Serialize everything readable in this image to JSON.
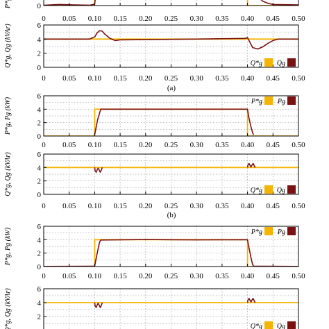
{
  "colors": {
    "reference": "#f5b400",
    "measured": "#7a1212"
  },
  "xticks": [
    "0",
    "0.05",
    "0.10",
    "0.15",
    "0.20",
    "0.25",
    "0.30",
    "0.35",
    "0.40",
    "0.45",
    "0.50"
  ],
  "chart_data": [
    {
      "type": "line",
      "id": "a-P",
      "ylabel": "P*g, Pg",
      "ylim": [
        0,
        6
      ],
      "yticks": [
        "0"
      ],
      "xlim": [
        0,
        0.5
      ],
      "grid": true,
      "legend": null,
      "series": [
        {
          "role": "reference",
          "x": [
            0,
            0.1,
            0.1,
            0.4,
            0.4,
            0.5
          ],
          "y": [
            0,
            0,
            6,
            6,
            0,
            0
          ]
        },
        {
          "role": "measured",
          "x": [
            0,
            0.03,
            0.06,
            0.09,
            0.1,
            0.103,
            0.106,
            0.4,
            0.403,
            0.41,
            0.42,
            0.43,
            0.44,
            0.45,
            0.5
          ],
          "y": [
            0.05,
            0.15,
            0.1,
            0.05,
            0.2,
            2,
            5,
            5,
            3.5,
            2.2,
            1.2,
            0.6,
            0.3,
            0.15,
            0.1
          ]
        }
      ]
    },
    {
      "type": "line",
      "id": "a-Q",
      "ylabel": "Q*g, Qg (kVAr)",
      "ylim": [
        0,
        6
      ],
      "yticks": [
        "0",
        "2",
        "4",
        "6"
      ],
      "xlim": [
        0,
        0.5
      ],
      "grid": true,
      "legend": {
        "placement": "bottom-right",
        "entries": [
          "Q*g",
          "Qg"
        ]
      },
      "series": [
        {
          "role": "reference",
          "x": [
            0,
            0.5
          ],
          "y": [
            4,
            4
          ]
        },
        {
          "role": "measured",
          "x": [
            0,
            0.09,
            0.1,
            0.105,
            0.11,
            0.115,
            0.12,
            0.13,
            0.14,
            0.15,
            0.3,
            0.395,
            0.4,
            0.405,
            0.41,
            0.42,
            0.43,
            0.44,
            0.45,
            0.46,
            0.5
          ],
          "y": [
            4,
            4,
            4.3,
            4.9,
            5.2,
            5.1,
            4.7,
            4.1,
            3.8,
            3.9,
            4,
            4.1,
            4.2,
            3.5,
            2.8,
            2.6,
            2.9,
            3.4,
            3.8,
            4,
            4
          ]
        }
      ]
    },
    {
      "type": "line",
      "id": "b-P",
      "ylabel": "P*g, Pg (kW)",
      "ylim": [
        0,
        6
      ],
      "yticks": [
        "0",
        "2",
        "4",
        "6"
      ],
      "xlim": [
        0,
        0.5
      ],
      "grid": true,
      "legend": {
        "placement": "top-right",
        "entries": [
          "P*g",
          "Pg"
        ]
      },
      "series": [
        {
          "role": "reference",
          "x": [
            0,
            0.1,
            0.1,
            0.4,
            0.4,
            0.5
          ],
          "y": [
            0,
            0,
            4,
            4,
            0,
            0
          ]
        },
        {
          "role": "measured",
          "x": [
            0.1,
            0.102,
            0.106,
            0.11,
            0.112,
            0.4,
            0.402,
            0.406,
            0.41,
            0.412
          ],
          "y": [
            0.2,
            1.0,
            2.5,
            3.5,
            4.0,
            4.0,
            3.0,
            1.6,
            0.5,
            0.2
          ]
        }
      ]
    },
    {
      "type": "line",
      "id": "b-Q",
      "ylabel": "Q*g, Qg (kVAr)",
      "ylim": [
        0,
        6
      ],
      "yticks": [
        "0",
        "2",
        "4",
        "6"
      ],
      "xlim": [
        0,
        0.5
      ],
      "grid": true,
      "legend": {
        "placement": "bottom-right",
        "entries": [
          "Q*g",
          "Qg"
        ]
      },
      "series": [
        {
          "role": "reference",
          "x": [
            0,
            0.5
          ],
          "y": [
            4,
            4
          ]
        },
        {
          "role": "measured",
          "x": [
            0.1,
            0.101,
            0.103,
            0.105,
            0.107,
            0.109,
            0.111,
            0.113,
            0.115
          ],
          "y": [
            4,
            3.5,
            3.3,
            3.7,
            3.9,
            3.6,
            3.3,
            3.6,
            4
          ]
        },
        {
          "role": "measured",
          "x": [
            0.4,
            0.401,
            0.403,
            0.405,
            0.407,
            0.409,
            0.411,
            0.413,
            0.415
          ],
          "y": [
            4,
            4.4,
            4.6,
            4.3,
            4.1,
            4.4,
            4.6,
            4.3,
            4
          ]
        }
      ]
    },
    {
      "type": "line",
      "id": "c-P",
      "ylabel": "P*g, Pg (kW)",
      "ylim": [
        0,
        6
      ],
      "yticks": [
        "0",
        "2",
        "4",
        "6"
      ],
      "xlim": [
        0,
        0.5
      ],
      "grid": true,
      "legend": {
        "placement": "top-right",
        "entries": [
          "P*g",
          "Pg"
        ]
      },
      "series": [
        {
          "role": "reference",
          "x": [
            0,
            0.1,
            0.1,
            0.4,
            0.4,
            0.5
          ],
          "y": [
            0,
            0,
            4,
            4,
            0,
            0
          ]
        },
        {
          "role": "measured",
          "x": [
            0,
            0.1,
            0.102,
            0.105,
            0.108,
            0.11,
            0.112,
            0.2,
            0.3,
            0.4,
            0.402,
            0.405,
            0.408,
            0.41,
            0.412,
            0.5
          ],
          "y": [
            0.02,
            0.05,
            0.9,
            2.0,
            3.1,
            3.7,
            3.95,
            4.02,
            3.97,
            4.0,
            3.1,
            2.0,
            0.9,
            0.3,
            0.05,
            0.02
          ]
        }
      ]
    },
    {
      "type": "line",
      "id": "c-Q",
      "ylabel": "Q*g, Qg (kVAr)",
      "ylim": [
        0,
        6
      ],
      "yticks": [
        "2",
        "4",
        "6"
      ],
      "xlim": [
        0,
        0.5
      ],
      "grid": true,
      "legend": {
        "placement": "bottom-right",
        "entries": [
          "Q*g",
          "Qg"
        ]
      },
      "series": [
        {
          "role": "reference",
          "x": [
            0,
            0.5
          ],
          "y": [
            4,
            4
          ]
        },
        {
          "role": "measured",
          "x": [
            0.1,
            0.101,
            0.103,
            0.105,
            0.107,
            0.109,
            0.111,
            0.113,
            0.115
          ],
          "y": [
            4,
            3.5,
            3.3,
            3.7,
            3.9,
            3.6,
            3.3,
            3.6,
            4
          ]
        },
        {
          "role": "measured",
          "x": [
            0.4,
            0.401,
            0.403,
            0.405,
            0.407,
            0.409,
            0.411,
            0.413,
            0.415
          ],
          "y": [
            4,
            4.4,
            4.6,
            4.3,
            4.1,
            4.4,
            4.6,
            4.3,
            4
          ]
        }
      ]
    }
  ],
  "captions": [
    "(a)",
    "(b)"
  ],
  "legend_labels": {
    "P_ref": "P*g",
    "P_meas": "Pg",
    "Q_ref": "Q*g",
    "Q_meas": "Qg"
  }
}
